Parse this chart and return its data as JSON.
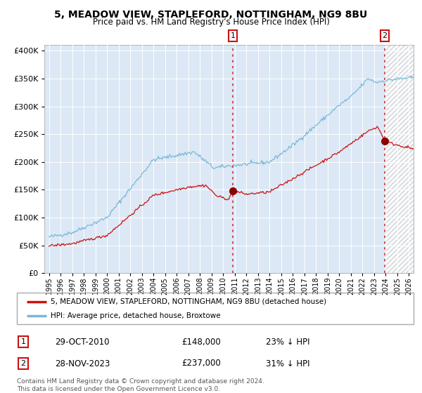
{
  "title": "5, MEADOW VIEW, STAPLEFORD, NOTTINGHAM, NG9 8BU",
  "subtitle": "Price paid vs. HM Land Registry's House Price Index (HPI)",
  "legend_line1": "5, MEADOW VIEW, STAPLEFORD, NOTTINGHAM, NG9 8BU (detached house)",
  "legend_line2": "HPI: Average price, detached house, Broxtowe",
  "annotation1_label": "1",
  "annotation1_date": "29-OCT-2010",
  "annotation1_price": "£148,000",
  "annotation1_hpi": "23% ↓ HPI",
  "annotation2_label": "2",
  "annotation2_date": "28-NOV-2023",
  "annotation2_price": "£237,000",
  "annotation2_hpi": "31% ↓ HPI",
  "footnote1": "Contains HM Land Registry data © Crown copyright and database right 2024.",
  "footnote2": "This data is licensed under the Open Government Licence v3.0.",
  "hpi_color": "#7ab8d9",
  "price_color": "#cc1111",
  "marker_color": "#8b0000",
  "background_plot": "#dce8f5",
  "vline_color": "#cc3333",
  "marker1_x": 2010.83,
  "marker1_y": 148000,
  "marker2_x": 2023.92,
  "marker2_y": 237000,
  "vline1_x": 2010.83,
  "vline2_x": 2023.92,
  "ylim": [
    0,
    410000
  ],
  "xlim_start": 1994.6,
  "xlim_end": 2026.4,
  "xticks": [
    1995,
    1996,
    1997,
    1998,
    1999,
    2000,
    2001,
    2002,
    2003,
    2004,
    2005,
    2006,
    2007,
    2008,
    2009,
    2010,
    2011,
    2012,
    2013,
    2014,
    2015,
    2016,
    2017,
    2018,
    2019,
    2020,
    2021,
    2022,
    2023,
    2024,
    2025,
    2026
  ],
  "yticks": [
    0,
    50000,
    100000,
    150000,
    200000,
    250000,
    300000,
    350000,
    400000
  ]
}
